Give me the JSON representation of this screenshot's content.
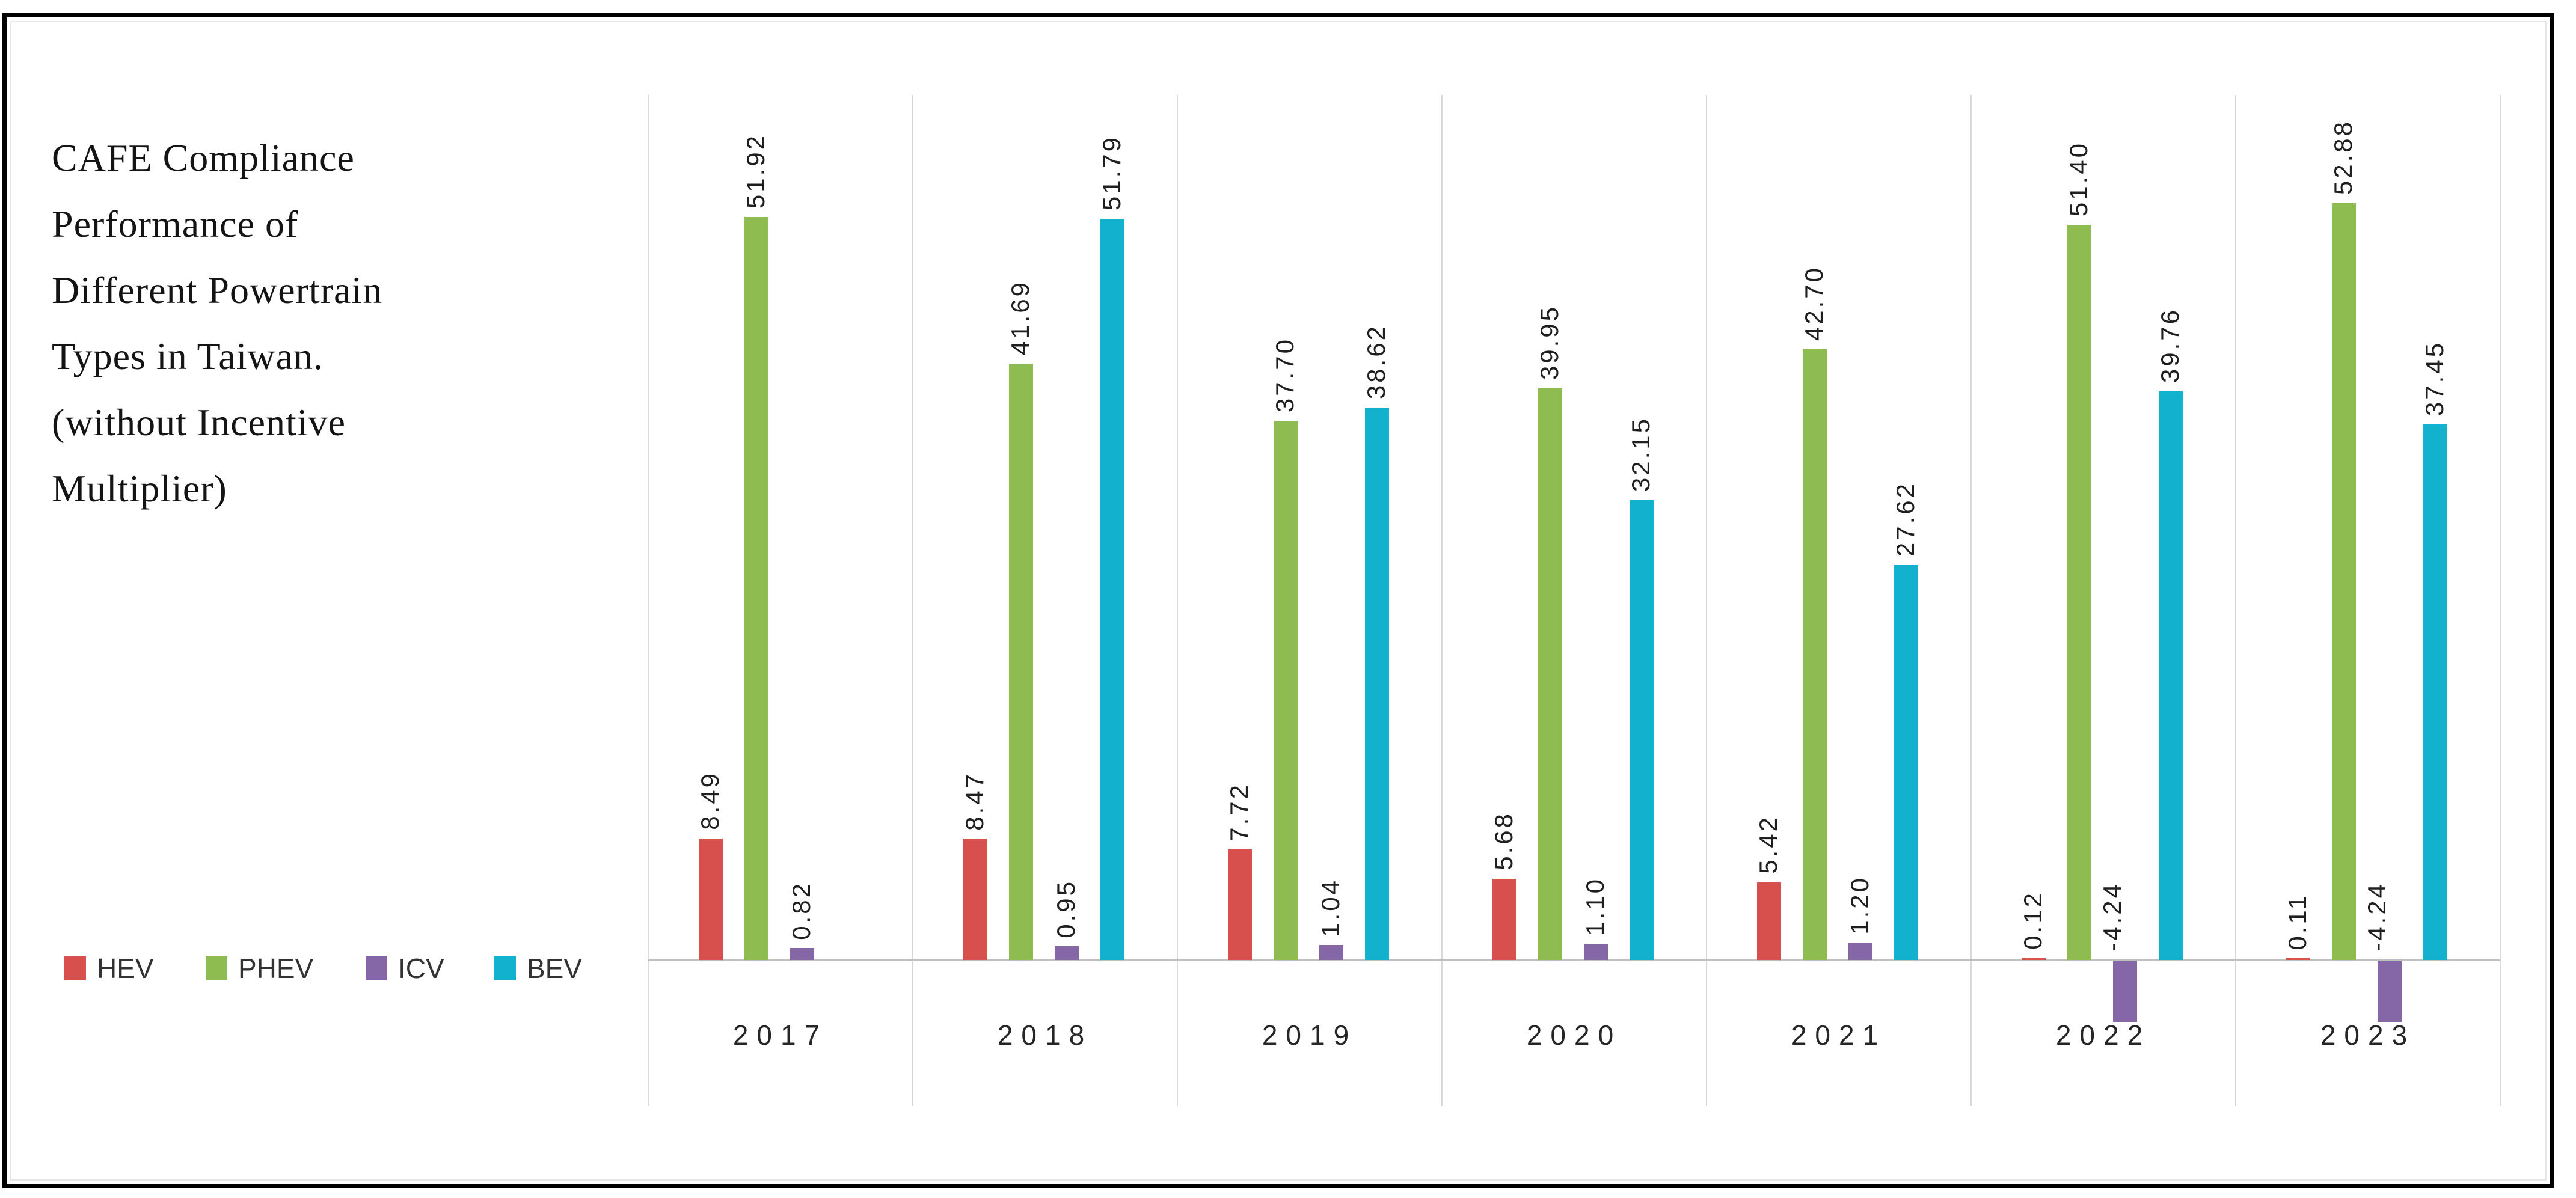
{
  "frame": {
    "background": "#ffffff",
    "border_color": "#000000",
    "inner_frame_color": "#e7e7e7"
  },
  "title": {
    "text": "CAFE Compliance Performance of Different Powertrain Types in Taiwan. (without Incentive Multiplier)",
    "lines": [
      "CAFE Compliance",
      "Performance of",
      "Different Powertrain",
      "Types in Taiwan.",
      "(without Incentive",
      "Multiplier)"
    ]
  },
  "chart_data": {
    "type": "bar",
    "categories": [
      "2017",
      "2018",
      "2019",
      "2020",
      "2021",
      "2022",
      "2023"
    ],
    "series": [
      {
        "name": "HEV",
        "color": "#d8504e",
        "values": [
          8.49,
          8.47,
          7.72,
          5.68,
          5.42,
          0.12,
          0.11
        ]
      },
      {
        "name": "PHEV",
        "color": "#8fbc51",
        "values": [
          51.92,
          41.69,
          37.7,
          39.95,
          42.7,
          51.4,
          52.88
        ]
      },
      {
        "name": "ICV",
        "color": "#8566a7",
        "values": [
          0.82,
          0.95,
          1.04,
          1.1,
          1.2,
          -4.24,
          -4.24
        ]
      },
      {
        "name": "BEV",
        "color": "#12b2cf",
        "values": [
          null,
          51.79,
          38.62,
          32.15,
          27.62,
          39.76,
          37.45
        ]
      }
    ],
    "value_labels": {
      "visible": true,
      "format": "0.00",
      "rotation_deg": 90
    },
    "xlabel": "",
    "ylabel": "",
    "y_axis_visible": false,
    "ylim": [
      -6,
      56
    ],
    "grid": "vertical-category-separators-only",
    "legend_position": "bottom-left",
    "notes": "No BEV bar or label shown for 2017; ICV bars are negative in 2022 and 2023."
  },
  "colors": {
    "gridline": "#d9d9d9",
    "axis_line": "#bfbfbf",
    "value_label_text": "#1f1f1f",
    "year_label_text": "#262626",
    "legend_text": "#333333",
    "title_text": "#141414"
  }
}
